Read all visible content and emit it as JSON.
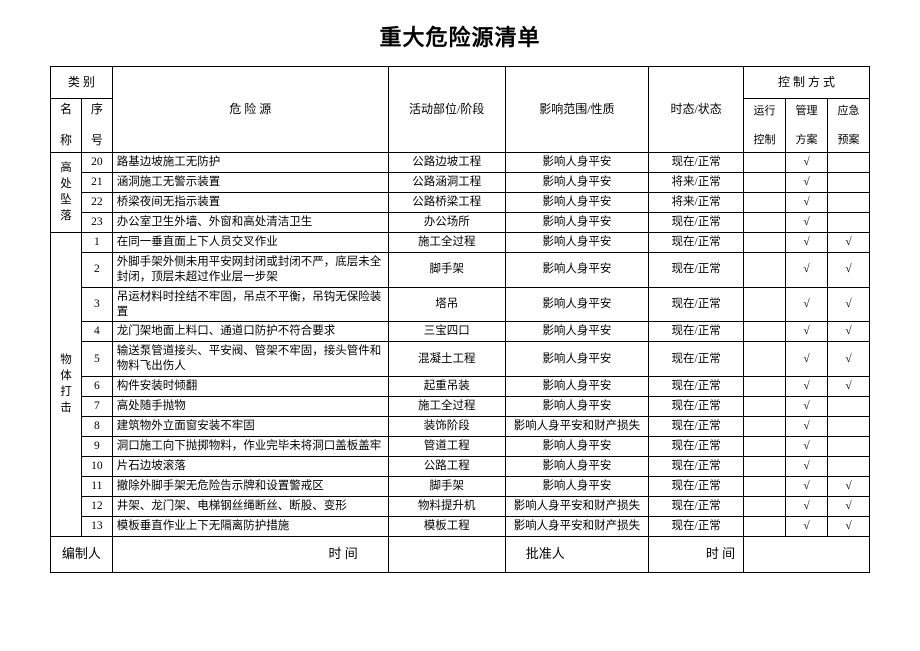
{
  "title": "重大危险源清单",
  "header": {
    "category": "类 别",
    "name": "名",
    "seq_top": "序",
    "name2": "称",
    "seq_bot": "号",
    "source": "危    险    源",
    "activity": "活动部位/阶段",
    "scope": "影响范围/性质",
    "state": "时态/状态",
    "control_group": "控 制 方 式",
    "run": "运行",
    "run2": "控制",
    "mgmt": "管理",
    "mgmt2": "方案",
    "emerg": "应急",
    "emerg2": "预案"
  },
  "check": "√",
  "groups": [
    {
      "label": "高处坠落",
      "rows": [
        {
          "no": "20",
          "src": "路基边坡施工无防护",
          "act": "公路边坡工程",
          "scope": "影响人身平安",
          "state": "现在/正常",
          "r": "",
          "m": "√",
          "e": ""
        },
        {
          "no": "21",
          "src": "涵洞施工无警示装置",
          "act": "公路涵洞工程",
          "scope": "影响人身平安",
          "state": "将来/正常",
          "r": "",
          "m": "√",
          "e": ""
        },
        {
          "no": "22",
          "src": "桥梁夜间无指示装置",
          "act": "公路桥梁工程",
          "scope": "影响人身平安",
          "state": "将来/正常",
          "r": "",
          "m": "√",
          "e": ""
        },
        {
          "no": "23",
          "src": "办公室卫生外墙、外窗和高处清洁卫生",
          "act": "办公场所",
          "scope": "影响人身平安",
          "state": "现在/正常",
          "r": "",
          "m": "√",
          "e": ""
        }
      ]
    },
    {
      "label": "物体打击",
      "rows": [
        {
          "no": "1",
          "src": "在同一垂直面上下人员交叉作业",
          "act": "施工全过程",
          "scope": "影响人身平安",
          "state": "现在/正常",
          "r": "",
          "m": "√",
          "e": "√"
        },
        {
          "no": "2",
          "src": "外脚手架外侧未用平安网封闭或封闭不严，底层未全封闭，顶层未超过作业层一步架",
          "act": "脚手架",
          "scope": "影响人身平安",
          "state": "现在/正常",
          "r": "",
          "m": "√",
          "e": "√"
        },
        {
          "no": "3",
          "src": "吊运材料时拴结不牢固，吊点不平衡，吊钩无保险装置",
          "act": "塔吊",
          "scope": "影响人身平安",
          "state": "现在/正常",
          "r": "",
          "m": "√",
          "e": "√"
        },
        {
          "no": "4",
          "src": "龙门架地面上料口、通道口防护不符合要求",
          "act": "三宝四口",
          "scope": "影响人身平安",
          "state": "现在/正常",
          "r": "",
          "m": "√",
          "e": "√"
        },
        {
          "no": "5",
          "src": "输送泵管道接头、平安阀、管架不牢固，接头管件和物料飞出伤人",
          "act": "混凝土工程",
          "scope": "影响人身平安",
          "state": "现在/正常",
          "r": "",
          "m": "√",
          "e": "√"
        },
        {
          "no": "6",
          "src": "构件安装时倾翻",
          "act": "起重吊装",
          "scope": "影响人身平安",
          "state": "现在/正常",
          "r": "",
          "m": "√",
          "e": "√"
        },
        {
          "no": "7",
          "src": "高处随手抛物",
          "act": "施工全过程",
          "scope": "影响人身平安",
          "state": "现在/正常",
          "r": "",
          "m": "√",
          "e": ""
        },
        {
          "no": "8",
          "src": "建筑物外立面窗安装不牢固",
          "act": "装饰阶段",
          "scope": "影响人身平安和财产损失",
          "state": "现在/正常",
          "r": "",
          "m": "√",
          "e": ""
        },
        {
          "no": "9",
          "src": "洞口施工向下抛掷物料，作业完毕未将洞口盖板盖牢",
          "act": "管道工程",
          "scope": "影响人身平安",
          "state": "现在/正常",
          "r": "",
          "m": "√",
          "e": ""
        },
        {
          "no": "10",
          "src": "片石边坡滚落",
          "act": "公路工程",
          "scope": "影响人身平安",
          "state": "现在/正常",
          "r": "",
          "m": "√",
          "e": ""
        },
        {
          "no": "11",
          "src": "撤除外脚手架无危险告示牌和设置警戒区",
          "act": "脚手架",
          "scope": "影响人身平安",
          "state": "现在/正常",
          "r": "",
          "m": "√",
          "e": "√"
        },
        {
          "no": "12",
          "src": "井架、龙门架、电梯钢丝绳断丝、断股、变形",
          "act": "物料提升机",
          "scope": "影响人身平安和财产损失",
          "state": "现在/正常",
          "r": "",
          "m": "√",
          "e": "√"
        },
        {
          "no": "13",
          "src": "模板垂直作业上下无隔离防护措施",
          "act": "模板工程",
          "scope": "影响人身平安和财产损失",
          "state": "现在/正常",
          "r": "",
          "m": "√",
          "e": "√"
        }
      ]
    }
  ],
  "footer": {
    "prep": "编制人",
    "time1": "时 间",
    "approver": "批准人",
    "time2": "时 间"
  }
}
